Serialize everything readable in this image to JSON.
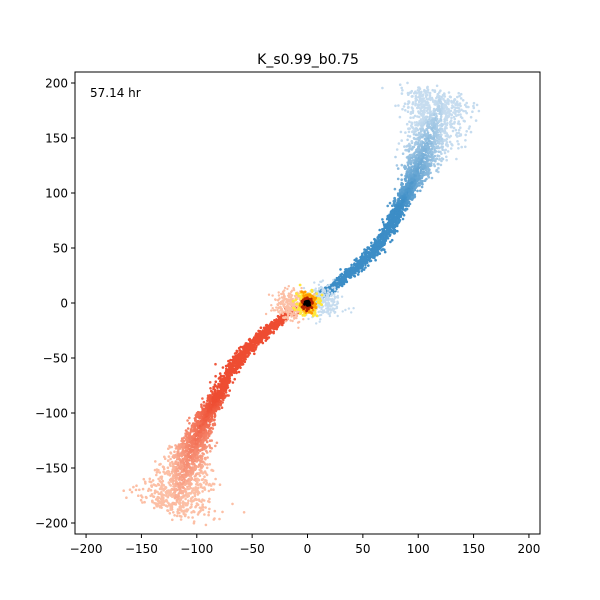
{
  "chart_data": {
    "type": "scatter",
    "title": "K_s0.99_b0.75",
    "annotation": "57.14 hr",
    "xlabel": "",
    "ylabel": "",
    "xlim": [
      -210,
      210
    ],
    "ylim": [
      -210,
      210
    ],
    "xticks": [
      -200,
      -150,
      -100,
      -50,
      0,
      50,
      100,
      150,
      200
    ],
    "yticks": [
      -200,
      -150,
      -100,
      -50,
      0,
      50,
      100,
      150,
      200
    ],
    "grid": false,
    "series": [
      {
        "color_dark": "#3c8dc6",
        "color_light": "#c6dcef",
        "path": [
          [
            2,
            2
          ],
          [
            15,
            8
          ],
          [
            30,
            20
          ],
          [
            45,
            33
          ],
          [
            60,
            48
          ],
          [
            72,
            65
          ],
          [
            82,
            85
          ],
          [
            90,
            100
          ],
          [
            97,
            115
          ],
          [
            103,
            130
          ],
          [
            108,
            145
          ],
          [
            113,
            160
          ],
          [
            118,
            175
          ],
          [
            122,
            190
          ]
        ]
      },
      {
        "color_dark": "#ee4d32",
        "color_light": "#fcbfa5",
        "path": [
          [
            -2,
            -2
          ],
          [
            -15,
            -8
          ],
          [
            -30,
            -20
          ],
          [
            -45,
            -33
          ],
          [
            -60,
            -48
          ],
          [
            -72,
            -65
          ],
          [
            -82,
            -85
          ],
          [
            -90,
            -100
          ],
          [
            -97,
            -115
          ],
          [
            -103,
            -130
          ],
          [
            -108,
            -145
          ],
          [
            -113,
            -160
          ],
          [
            -118,
            -175
          ],
          [
            -123,
            -190
          ]
        ]
      }
    ],
    "center_cluster": {
      "x": 0,
      "y": 0,
      "colors": [
        "#000000",
        "#b32400",
        "#ff9a00",
        "#ffe83a"
      ]
    }
  }
}
